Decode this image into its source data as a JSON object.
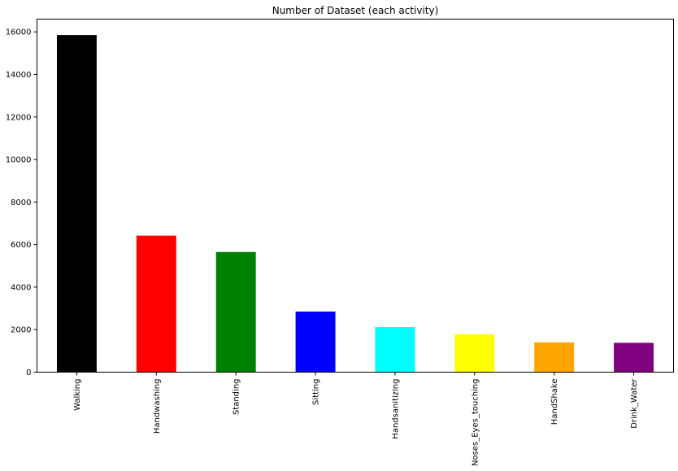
{
  "chart_data": {
    "type": "bar",
    "title": "Number of Dataset (each activity)",
    "xlabel": "",
    "ylabel": "",
    "categories": [
      "Walking",
      "Handwashing",
      "Standing",
      "Sitting",
      "Handsanitizing",
      "Noses_Eyes_touching",
      "HandShake",
      "Drink_Water"
    ],
    "values": [
      15850,
      6420,
      5650,
      2850,
      2120,
      1780,
      1400,
      1380
    ],
    "colors": [
      "#000000",
      "#ff0000",
      "#008000",
      "#0000ff",
      "#00ffff",
      "#ffff00",
      "#ffa500",
      "#800080"
    ],
    "ylim": [
      0,
      16600
    ],
    "yticks": [
      0,
      2000,
      4000,
      6000,
      8000,
      10000,
      12000,
      14000,
      16000
    ],
    "grid": false,
    "legend": "none"
  }
}
